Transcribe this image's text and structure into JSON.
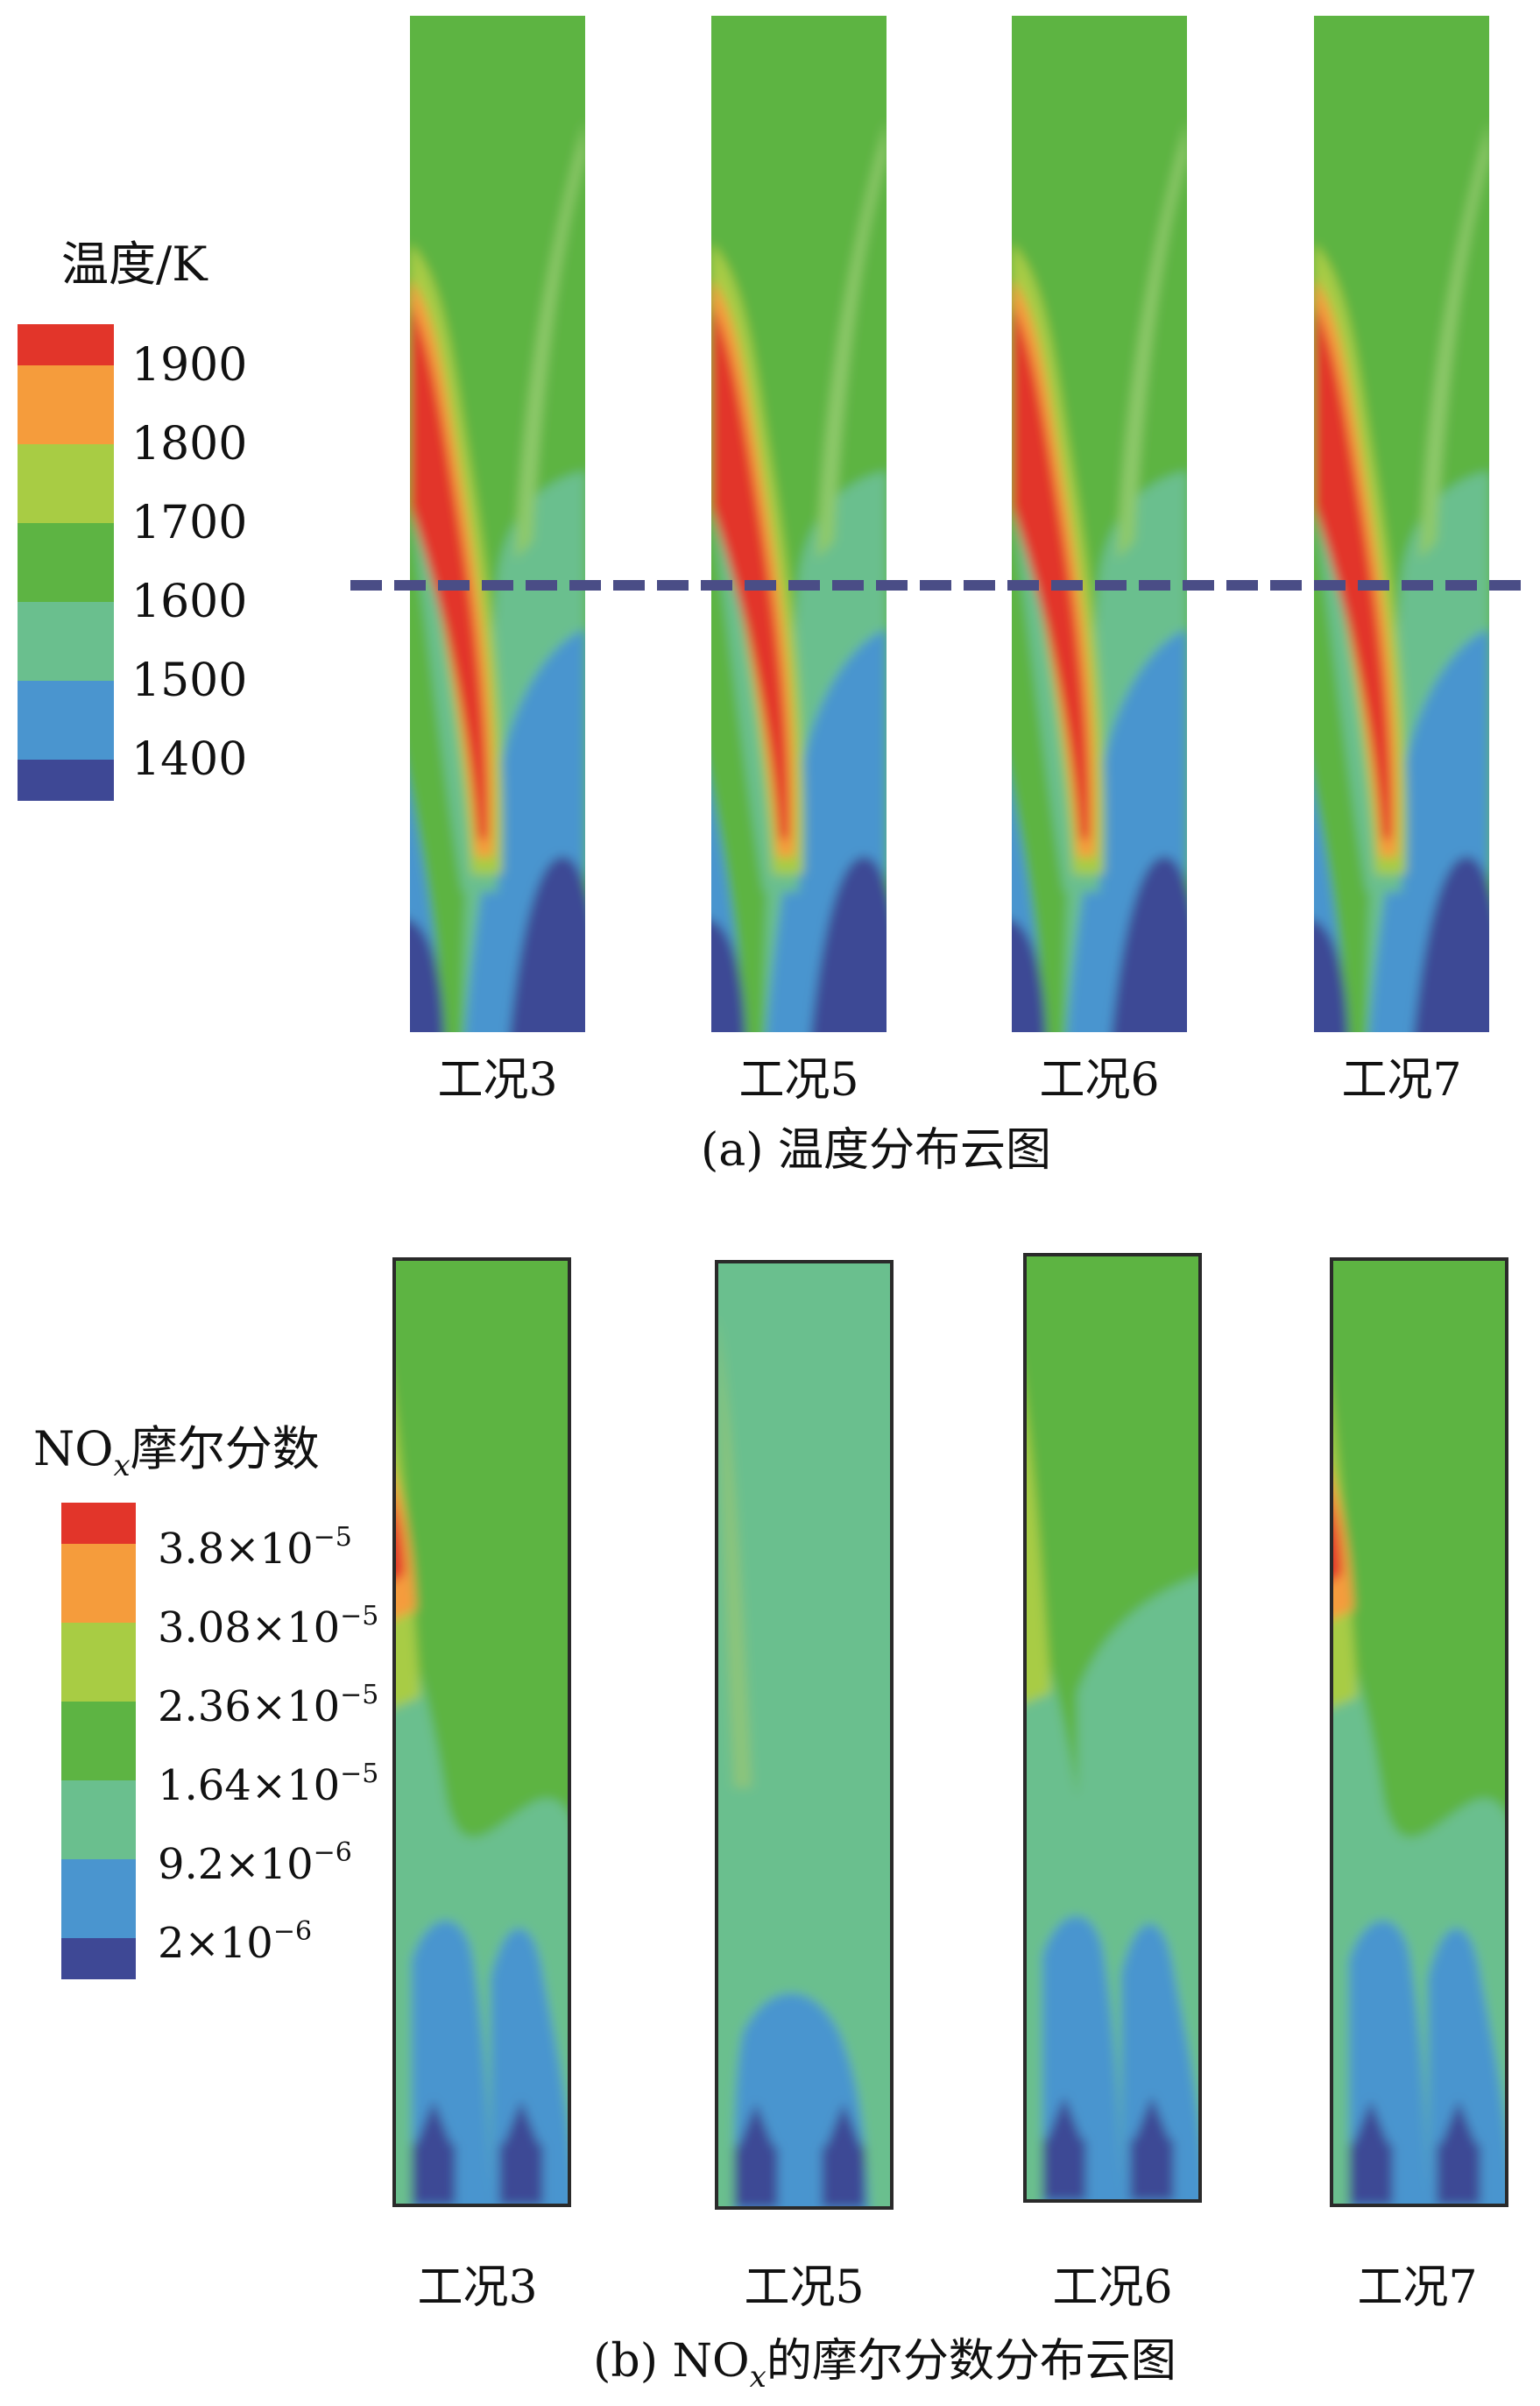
{
  "colors": {
    "temp": [
      "#e2352a",
      "#f59c3c",
      "#a8cc44",
      "#5db443",
      "#6abf8e",
      "#4a95cf",
      "#3e4895"
    ],
    "nox": [
      "#e2352a",
      "#f59c3c",
      "#a8cc44",
      "#5db443",
      "#6abf8e",
      "#4a95cf",
      "#3e4895"
    ],
    "dashed_line": "#4a4d86",
    "panel_border": "#2a2a2a"
  },
  "panel_a": {
    "legend_title": "温度/K",
    "legend_labels": [
      "1900",
      "1800",
      "1700",
      "1600",
      "1500",
      "1400"
    ],
    "cases": [
      "工况3",
      "工况5",
      "工况6",
      "工况7"
    ],
    "caption": "(a) 温度分布云图"
  },
  "panel_b": {
    "legend_title_main": "NO",
    "legend_title_sub": "x",
    "legend_title_rest": "摩尔分数",
    "legend_labels": [
      {
        "mant": "3.8×10",
        "exp": "−5"
      },
      {
        "mant": "3.08×10",
        "exp": "−5"
      },
      {
        "mant": "2.36×10",
        "exp": "−5"
      },
      {
        "mant": "1.64×10",
        "exp": "−5"
      },
      {
        "mant": "9.2×10",
        "exp": "−6"
      },
      {
        "mant": "2×10",
        "exp": "−6"
      }
    ],
    "cases": [
      "工况3",
      "工况5",
      "工况6",
      "工况7"
    ],
    "caption_pre": "(b) NO",
    "caption_sub": "x",
    "caption_post": "的摩尔分数分布云图"
  }
}
